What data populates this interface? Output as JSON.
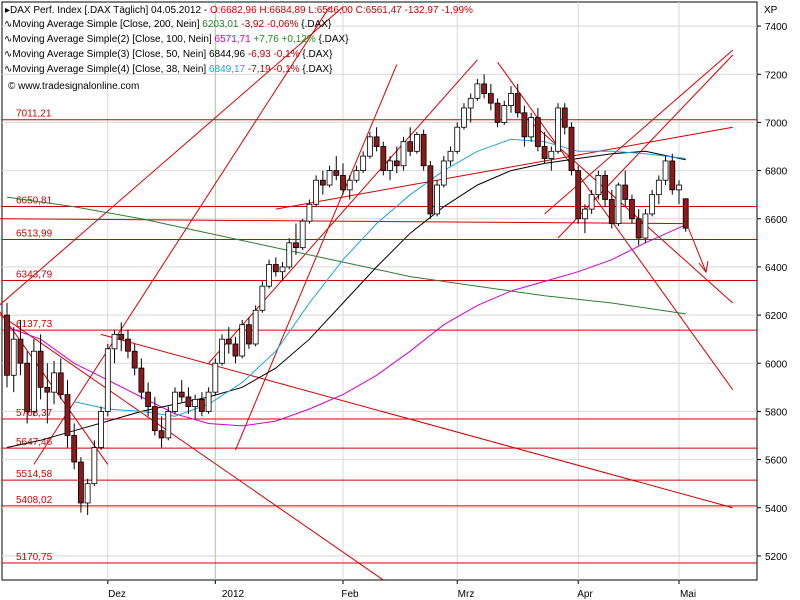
{
  "header": {
    "main": {
      "pre": "DAX Perf. Index [.DAX Täglich] 04.05.2012 -",
      "quote": "O:6682,96 H:6684,89 L:6546,00 C:6561,47 -132,97 -1,99%"
    },
    "lines": [
      {
        "label": "Moving Average Simple [Close, 200, Nein]",
        "value": "6203,01",
        "change": "-3,92 -0,06%",
        "suffix": "{.DAX}",
        "color": "#2e7d32",
        "change_color": "#c00000"
      },
      {
        "label": "Moving Average Simple(2) [Close, 100, Nein]",
        "value": "6571,71",
        "change": "+7,76 +0,12%",
        "suffix": "{.DAX}",
        "color": "#cc00cc",
        "change_color": "#1a8f1a"
      },
      {
        "label": "Moving Average Simple(3) [Close, 50, Nein]",
        "value": "6844,96",
        "change": "-6,93 -0,1%",
        "suffix": "{.DAX}",
        "color": "#000000",
        "change_color": "#c00000"
      },
      {
        "label": "Moving Average Simple(4) [Close, 38, Nein]",
        "value": "6849,17",
        "change": "-7,19 -0,1%",
        "suffix": "{.DAX}",
        "color": "#1aa3e0",
        "change_color": "#c00000"
      }
    ],
    "source": "www.tradesignalonline.com"
  },
  "colors": {
    "up": "#ffffff",
    "down": "#8b1a1a",
    "level": "#d40000",
    "grid": "#d8d8d8",
    "axis": "#000000"
  },
  "chart_data": {
    "type": "candlestick",
    "ylim": [
      5100,
      7500
    ],
    "y_unit": "XP",
    "yticks": [
      5200,
      5400,
      5600,
      5800,
      6000,
      6200,
      6400,
      6600,
      6800,
      7000,
      7200,
      7400
    ],
    "x_labels": [
      "Dez",
      "2012",
      "Feb",
      "Mrz",
      "Apr",
      "Mai"
    ],
    "levels": [
      7011.21,
      6650.81,
      6513.99,
      6343.79,
      6137.73,
      5768.37,
      5647.46,
      5514.58,
      5408.02,
      5170.75
    ],
    "candles": [
      {
        "o": 6200,
        "h": 6250,
        "l": 5900,
        "c": 5950
      },
      {
        "o": 5950,
        "h": 6150,
        "l": 5880,
        "c": 6100
      },
      {
        "o": 6100,
        "h": 6180,
        "l": 5950,
        "c": 6000
      },
      {
        "o": 6000,
        "h": 6050,
        "l": 5750,
        "c": 5800
      },
      {
        "o": 5800,
        "h": 6100,
        "l": 5780,
        "c": 6050
      },
      {
        "o": 6050,
        "h": 6120,
        "l": 5850,
        "c": 5900
      },
      {
        "o": 5900,
        "h": 6000,
        "l": 5750,
        "c": 5880
      },
      {
        "o": 5880,
        "h": 6010,
        "l": 5830,
        "c": 5960
      },
      {
        "o": 5960,
        "h": 6020,
        "l": 5850,
        "c": 5870
      },
      {
        "o": 5870,
        "h": 5930,
        "l": 5650,
        "c": 5700
      },
      {
        "o": 5700,
        "h": 5750,
        "l": 5560,
        "c": 5590
      },
      {
        "o": 5590,
        "h": 5610,
        "l": 5380,
        "c": 5420
      },
      {
        "o": 5420,
        "h": 5520,
        "l": 5370,
        "c": 5500
      },
      {
        "o": 5500,
        "h": 5680,
        "l": 5490,
        "c": 5650
      },
      {
        "o": 5650,
        "h": 5820,
        "l": 5640,
        "c": 5800
      },
      {
        "o": 5800,
        "h": 6080,
        "l": 5780,
        "c": 6060
      },
      {
        "o": 6060,
        "h": 6140,
        "l": 6000,
        "c": 6120
      },
      {
        "o": 6120,
        "h": 6170,
        "l": 6050,
        "c": 6100
      },
      {
        "o": 6100,
        "h": 6140,
        "l": 6020,
        "c": 6050
      },
      {
        "o": 6050,
        "h": 6080,
        "l": 5950,
        "c": 5980
      },
      {
        "o": 5980,
        "h": 6020,
        "l": 5850,
        "c": 5880
      },
      {
        "o": 5880,
        "h": 5920,
        "l": 5780,
        "c": 5820
      },
      {
        "o": 5820,
        "h": 5860,
        "l": 5700,
        "c": 5720
      },
      {
        "o": 5720,
        "h": 5780,
        "l": 5650,
        "c": 5690
      },
      {
        "o": 5690,
        "h": 5820,
        "l": 5680,
        "c": 5800
      },
      {
        "o": 5800,
        "h": 5900,
        "l": 5790,
        "c": 5880
      },
      {
        "o": 5880,
        "h": 5930,
        "l": 5840,
        "c": 5860
      },
      {
        "o": 5860,
        "h": 5900,
        "l": 5790,
        "c": 5820
      },
      {
        "o": 5820,
        "h": 5870,
        "l": 5770,
        "c": 5850
      },
      {
        "o": 5850,
        "h": 5880,
        "l": 5780,
        "c": 5800
      },
      {
        "o": 5800,
        "h": 5900,
        "l": 5790,
        "c": 5880
      },
      {
        "o": 5880,
        "h": 6020,
        "l": 5870,
        "c": 6000
      },
      {
        "o": 6000,
        "h": 6120,
        "l": 5990,
        "c": 6100
      },
      {
        "o": 6100,
        "h": 6150,
        "l": 6040,
        "c": 6080
      },
      {
        "o": 6080,
        "h": 6110,
        "l": 6000,
        "c": 6030
      },
      {
        "o": 6030,
        "h": 6180,
        "l": 6020,
        "c": 6160
      },
      {
        "o": 6160,
        "h": 6190,
        "l": 6060,
        "c": 6080
      },
      {
        "o": 6080,
        "h": 6240,
        "l": 6070,
        "c": 6220
      },
      {
        "o": 6220,
        "h": 6340,
        "l": 6210,
        "c": 6320
      },
      {
        "o": 6320,
        "h": 6430,
        "l": 6310,
        "c": 6410
      },
      {
        "o": 6410,
        "h": 6440,
        "l": 6360,
        "c": 6380
      },
      {
        "o": 6380,
        "h": 6420,
        "l": 6340,
        "c": 6400
      },
      {
        "o": 6400,
        "h": 6520,
        "l": 6390,
        "c": 6500
      },
      {
        "o": 6500,
        "h": 6580,
        "l": 6450,
        "c": 6480
      },
      {
        "o": 6480,
        "h": 6600,
        "l": 6470,
        "c": 6590
      },
      {
        "o": 6590,
        "h": 6680,
        "l": 6580,
        "c": 6660
      },
      {
        "o": 6660,
        "h": 6780,
        "l": 6650,
        "c": 6760
      },
      {
        "o": 6760,
        "h": 6800,
        "l": 6700,
        "c": 6740
      },
      {
        "o": 6740,
        "h": 6820,
        "l": 6730,
        "c": 6800
      },
      {
        "o": 6800,
        "h": 6860,
        "l": 6760,
        "c": 6780
      },
      {
        "o": 6780,
        "h": 6830,
        "l": 6700,
        "c": 6720
      },
      {
        "o": 6720,
        "h": 6780,
        "l": 6680,
        "c": 6760
      },
      {
        "o": 6760,
        "h": 6820,
        "l": 6750,
        "c": 6800
      },
      {
        "o": 6800,
        "h": 6880,
        "l": 6790,
        "c": 6860
      },
      {
        "o": 6860,
        "h": 6960,
        "l": 6850,
        "c": 6940
      },
      {
        "o": 6940,
        "h": 6980,
        "l": 6880,
        "c": 6900
      },
      {
        "o": 6900,
        "h": 6920,
        "l": 6780,
        "c": 6800
      },
      {
        "o": 6800,
        "h": 6860,
        "l": 6760,
        "c": 6840
      },
      {
        "o": 6840,
        "h": 6900,
        "l": 6790,
        "c": 6820
      },
      {
        "o": 6820,
        "h": 6940,
        "l": 6800,
        "c": 6920
      },
      {
        "o": 6920,
        "h": 6980,
        "l": 6860,
        "c": 6880
      },
      {
        "o": 6880,
        "h": 6960,
        "l": 6870,
        "c": 6950
      },
      {
        "o": 6950,
        "h": 6970,
        "l": 6800,
        "c": 6820
      },
      {
        "o": 6820,
        "h": 6840,
        "l": 6600,
        "c": 6620
      },
      {
        "o": 6620,
        "h": 6760,
        "l": 6610,
        "c": 6740
      },
      {
        "o": 6740,
        "h": 6860,
        "l": 6730,
        "c": 6840
      },
      {
        "o": 6840,
        "h": 6900,
        "l": 6820,
        "c": 6880
      },
      {
        "o": 6880,
        "h": 7000,
        "l": 6870,
        "c": 6980
      },
      {
        "o": 6980,
        "h": 7080,
        "l": 6970,
        "c": 7060
      },
      {
        "o": 7060,
        "h": 7120,
        "l": 7000,
        "c": 7100
      },
      {
        "o": 7100,
        "h": 7180,
        "l": 7090,
        "c": 7160
      },
      {
        "o": 7160,
        "h": 7200,
        "l": 7100,
        "c": 7120
      },
      {
        "o": 7120,
        "h": 7160,
        "l": 7050,
        "c": 7080
      },
      {
        "o": 7080,
        "h": 7100,
        "l": 6980,
        "c": 7000
      },
      {
        "o": 7000,
        "h": 7090,
        "l": 6990,
        "c": 7070
      },
      {
        "o": 7070,
        "h": 7150,
        "l": 7040,
        "c": 7120
      },
      {
        "o": 7120,
        "h": 7160,
        "l": 7020,
        "c": 7040
      },
      {
        "o": 7040,
        "h": 7070,
        "l": 6900,
        "c": 6940
      },
      {
        "o": 6940,
        "h": 7040,
        "l": 6920,
        "c": 7020
      },
      {
        "o": 7020,
        "h": 7060,
        "l": 6880,
        "c": 6900
      },
      {
        "o": 6900,
        "h": 6960,
        "l": 6830,
        "c": 6850
      },
      {
        "o": 6850,
        "h": 6900,
        "l": 6800,
        "c": 6880
      },
      {
        "o": 6880,
        "h": 7080,
        "l": 6870,
        "c": 7060
      },
      {
        "o": 7060,
        "h": 7080,
        "l": 6950,
        "c": 6980
      },
      {
        "o": 6980,
        "h": 7000,
        "l": 6780,
        "c": 6800
      },
      {
        "o": 6800,
        "h": 6820,
        "l": 6580,
        "c": 6600
      },
      {
        "o": 6600,
        "h": 6660,
        "l": 6540,
        "c": 6640
      },
      {
        "o": 6640,
        "h": 6720,
        "l": 6620,
        "c": 6700
      },
      {
        "o": 6700,
        "h": 6800,
        "l": 6680,
        "c": 6780
      },
      {
        "o": 6780,
        "h": 6800,
        "l": 6650,
        "c": 6680
      },
      {
        "o": 6680,
        "h": 6720,
        "l": 6560,
        "c": 6580
      },
      {
        "o": 6580,
        "h": 6750,
        "l": 6570,
        "c": 6740
      },
      {
        "o": 6740,
        "h": 6800,
        "l": 6650,
        "c": 6680
      },
      {
        "o": 6680,
        "h": 6700,
        "l": 6580,
        "c": 6600
      },
      {
        "o": 6600,
        "h": 6640,
        "l": 6490,
        "c": 6520
      },
      {
        "o": 6520,
        "h": 6640,
        "l": 6500,
        "c": 6620
      },
      {
        "o": 6620,
        "h": 6720,
        "l": 6610,
        "c": 6700
      },
      {
        "o": 6700,
        "h": 6780,
        "l": 6660,
        "c": 6760
      },
      {
        "o": 6760,
        "h": 6860,
        "l": 6740,
        "c": 6840
      },
      {
        "o": 6840,
        "h": 6870,
        "l": 6700,
        "c": 6720
      },
      {
        "o": 6720,
        "h": 6760,
        "l": 6660,
        "c": 6740
      },
      {
        "o": 6683,
        "h": 6685,
        "l": 6546,
        "c": 6561
      }
    ],
    "series": [
      {
        "name": "Moving Average Simple [Close, 200, Nein]",
        "color": "#2e7d32",
        "values": [
          [
            0,
            6690
          ],
          [
            10,
            6650
          ],
          [
            20,
            6600
          ],
          [
            30,
            6540
          ],
          [
            40,
            6480
          ],
          [
            50,
            6420
          ],
          [
            60,
            6360
          ],
          [
            70,
            6320
          ],
          [
            80,
            6280
          ],
          [
            90,
            6250
          ],
          [
            101,
            6205
          ]
        ]
      },
      {
        "name": "Moving Average Simple(2) [Close, 100, Nein]",
        "color": "#cc00cc",
        "values": [
          [
            0,
            6150
          ],
          [
            5,
            6100
          ],
          [
            10,
            6000
          ],
          [
            15,
            5930
          ],
          [
            20,
            5860
          ],
          [
            25,
            5790
          ],
          [
            30,
            5750
          ],
          [
            35,
            5740
          ],
          [
            40,
            5760
          ],
          [
            45,
            5810
          ],
          [
            50,
            5870
          ],
          [
            55,
            5950
          ],
          [
            60,
            6050
          ],
          [
            65,
            6160
          ],
          [
            70,
            6240
          ],
          [
            75,
            6300
          ],
          [
            80,
            6340
          ],
          [
            85,
            6380
          ],
          [
            90,
            6430
          ],
          [
            95,
            6500
          ],
          [
            101,
            6575
          ]
        ]
      },
      {
        "name": "Moving Average Simple(3) [Close, 50, Nein]",
        "color": "#000000",
        "values": [
          [
            0,
            5650
          ],
          [
            5,
            5680
          ],
          [
            10,
            5720
          ],
          [
            15,
            5760
          ],
          [
            20,
            5800
          ],
          [
            25,
            5830
          ],
          [
            30,
            5860
          ],
          [
            35,
            5900
          ],
          [
            40,
            5980
          ],
          [
            45,
            6100
          ],
          [
            50,
            6250
          ],
          [
            55,
            6400
          ],
          [
            60,
            6540
          ],
          [
            65,
            6650
          ],
          [
            70,
            6740
          ],
          [
            75,
            6800
          ],
          [
            80,
            6830
          ],
          [
            85,
            6850
          ],
          [
            90,
            6870
          ],
          [
            95,
            6880
          ],
          [
            101,
            6845
          ]
        ]
      },
      {
        "name": "Moving Average Simple(4) [Close, 38, Nein]",
        "color": "#1aa3e0",
        "values": [
          [
            10,
            5840
          ],
          [
            15,
            5810
          ],
          [
            20,
            5800
          ],
          [
            25,
            5780
          ],
          [
            30,
            5830
          ],
          [
            35,
            5920
          ],
          [
            40,
            6050
          ],
          [
            45,
            6250
          ],
          [
            50,
            6430
          ],
          [
            55,
            6580
          ],
          [
            60,
            6700
          ],
          [
            65,
            6800
          ],
          [
            70,
            6880
          ],
          [
            75,
            6930
          ],
          [
            80,
            6920
          ],
          [
            85,
            6880
          ],
          [
            90,
            6880
          ],
          [
            95,
            6870
          ],
          [
            101,
            6850
          ]
        ]
      }
    ],
    "trendlines": [
      [
        [
          -2,
          6220
        ],
        [
          50,
          7480
        ]
      ],
      [
        [
          -2,
          6220
        ],
        [
          56,
          5100
        ]
      ],
      [
        [
          -2,
          6250
        ],
        [
          15,
          5580
        ]
      ],
      [
        [
          4,
          5580
        ],
        [
          48,
          7480
        ]
      ],
      [
        [
          34,
          5640
        ],
        [
          58,
          7240
        ]
      ],
      [
        [
          30,
          6000
        ],
        [
          70,
          7260
        ]
      ],
      [
        [
          14,
          6120
        ],
        [
          108,
          5400
        ]
      ],
      [
        [
          40,
          6640
        ],
        [
          108,
          6980
        ]
      ],
      [
        [
          80,
          6620
        ],
        [
          108,
          7300
        ]
      ],
      [
        [
          82,
          6520
        ],
        [
          108,
          7280
        ]
      ],
      [
        [
          73,
          7250
        ],
        [
          108,
          5890
        ]
      ],
      [
        [
          76,
          7050
        ],
        [
          108,
          6250
        ]
      ],
      [
        [
          -2,
          6600
        ],
        [
          101,
          6580
        ]
      ]
    ]
  }
}
